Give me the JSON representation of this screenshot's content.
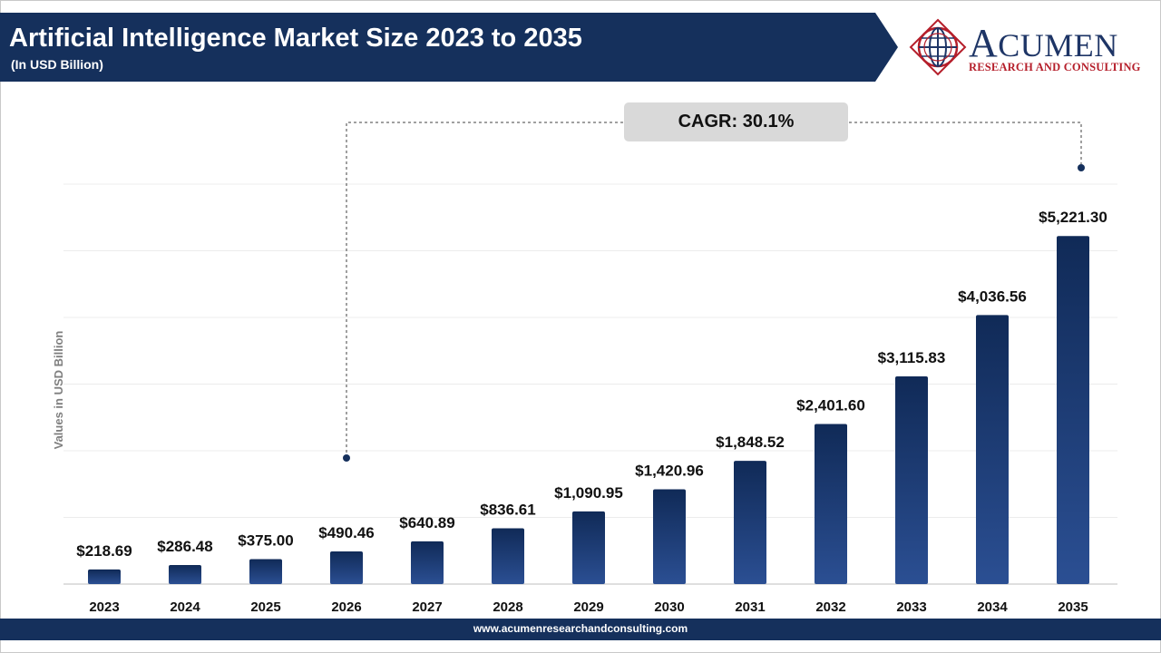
{
  "header": {
    "title": "Artificial Intelligence Market Size 2023 to 2035",
    "subtitle": "(In USD Billion)",
    "band_color": "#15305c"
  },
  "logo": {
    "wordmark_first": "A",
    "wordmark_rest": "CUMEN",
    "tagline": "RESEARCH AND CONSULTING",
    "icon": "globe-icon"
  },
  "annotation": {
    "cagr_label": "CAGR: 30.1%"
  },
  "footer": {
    "url": "www.acumenresearchandconsulting.com"
  },
  "chart_data": {
    "type": "bar",
    "title": "Artificial Intelligence Market Size 2023 to 2035",
    "ylabel": "Values in USD Billion",
    "xlabel": "",
    "categories": [
      "2023",
      "2024",
      "2025",
      "2026",
      "2027",
      "2028",
      "2029",
      "2030",
      "2031",
      "2032",
      "2033",
      "2034",
      "2035"
    ],
    "values": [
      218.69,
      286.48,
      375.0,
      490.46,
      640.89,
      836.61,
      1090.95,
      1420.96,
      1848.52,
      2401.6,
      3115.83,
      4036.56,
      5221.3
    ],
    "value_labels": [
      "$218.69",
      "$286.48",
      "$375.00",
      "$490.46",
      "$640.89",
      "$836.61",
      "$1,090.95",
      "$1,420.96",
      "$1,848.52",
      "$2,401.60",
      "$3,115.83",
      "$4,036.56",
      "$5,221.30"
    ],
    "ylim": [
      0,
      6000
    ],
    "grid": true,
    "bar_color_top": "#102a57",
    "bar_color_bottom": "#2b4f93"
  }
}
